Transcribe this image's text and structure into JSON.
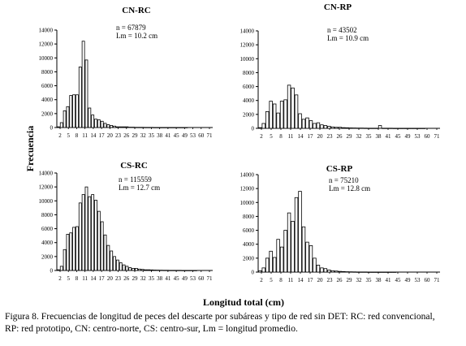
{
  "figure": {
    "ylabel": "Frecuencia",
    "xlabel": "Longitud total (cm)",
    "caption_line1": "Figura 8. Frecuencias de longitud de peces del descarte por subáreas y tipo de red sin DET: RC: red convencional,",
    "caption_line2": "RP: red prototipo, CN: centro-norte, CS: centro-sur, Lm = longitud promedio."
  },
  "chart_data": [
    {
      "type": "bar",
      "title": "CN-RC",
      "n_text": "n = 67879",
      "lm_text": "Lm = 10.2 cm",
      "ylim": [
        0,
        14000
      ],
      "yticks": [
        "0",
        "2000",
        "4000",
        "6000",
        "8000",
        "10000",
        "12000",
        "14000"
      ],
      "xticks": [
        "2",
        "5",
        "8",
        "11",
        "14",
        "17",
        "20",
        "23",
        "26",
        "29",
        "32",
        "35",
        "38",
        "41",
        "45",
        "49",
        "53",
        "60",
        "71"
      ],
      "categories": [
        "2",
        "3",
        "4",
        "5",
        "6",
        "7",
        "8",
        "9",
        "10",
        "11",
        "12",
        "13",
        "14",
        "15",
        "16",
        "17",
        "18",
        "19",
        "20",
        "21",
        "22",
        "23",
        "24",
        "25",
        "26",
        "27",
        "28",
        "29",
        "30",
        "31",
        "32",
        "33",
        "34",
        "35",
        "36",
        "37",
        "38",
        "39",
        "40",
        "41",
        "43",
        "45",
        "47",
        "49",
        "51",
        "53",
        "57",
        "60",
        "65",
        "71"
      ],
      "values": [
        100,
        700,
        2400,
        3000,
        4600,
        4700,
        4700,
        8700,
        12400,
        9700,
        2800,
        1800,
        1200,
        1100,
        900,
        600,
        400,
        300,
        200,
        100,
        100,
        100,
        100,
        50,
        50,
        30,
        30,
        30,
        20,
        20,
        20,
        10,
        10,
        10,
        10,
        10,
        10,
        10,
        10,
        10,
        10,
        10,
        0,
        0,
        0,
        0,
        0,
        0,
        0,
        0
      ]
    },
    {
      "type": "bar",
      "title": "CN-RP",
      "n_text": "n = 43502",
      "lm_text": "Lm = 10.9 cm",
      "ylim": [
        0,
        14000
      ],
      "yticks": [
        "0",
        "2000",
        "4000",
        "6000",
        "8000",
        "10000",
        "12000",
        "14000"
      ],
      "xticks": [
        "2",
        "5",
        "8",
        "11",
        "14",
        "17",
        "20",
        "23",
        "26",
        "29",
        "32",
        "35",
        "38",
        "41",
        "45",
        "49",
        "53",
        "60",
        "71"
      ],
      "categories": [
        "2",
        "3",
        "4",
        "5",
        "6",
        "7",
        "8",
        "9",
        "10",
        "11",
        "12",
        "13",
        "14",
        "15",
        "16",
        "17",
        "18",
        "19",
        "20",
        "21",
        "22",
        "23",
        "24",
        "25",
        "26",
        "27",
        "28",
        "29",
        "30",
        "31",
        "32",
        "33",
        "34",
        "35",
        "36",
        "37",
        "38",
        "39",
        "40",
        "41",
        "43",
        "45",
        "47",
        "49",
        "51",
        "53",
        "57",
        "60",
        "65",
        "71"
      ],
      "values": [
        100,
        700,
        2400,
        3900,
        3500,
        2200,
        3900,
        4100,
        6200,
        5800,
        4800,
        2100,
        1300,
        1500,
        1100,
        700,
        800,
        500,
        400,
        300,
        200,
        150,
        150,
        100,
        80,
        60,
        50,
        40,
        40,
        30,
        20,
        20,
        20,
        400,
        20,
        20,
        20,
        10,
        10,
        10,
        10,
        10,
        10,
        10,
        10,
        10,
        0,
        0,
        0,
        0
      ]
    },
    {
      "type": "bar",
      "title": "CS-RC",
      "n_text": "n = 115559",
      "lm_text": "Lm = 12.7 cm",
      "ylim": [
        0,
        14000
      ],
      "yticks": [
        "0",
        "2000",
        "4000",
        "6000",
        "8000",
        "10000",
        "12000",
        "14000"
      ],
      "xticks": [
        "2",
        "5",
        "8",
        "11",
        "14",
        "17",
        "20",
        "23",
        "26",
        "29",
        "32",
        "35",
        "38",
        "41",
        "45",
        "49",
        "53",
        "60",
        "71"
      ],
      "categories": [
        "2",
        "3",
        "4",
        "5",
        "6",
        "7",
        "8",
        "9",
        "10",
        "11",
        "12",
        "13",
        "14",
        "15",
        "16",
        "17",
        "18",
        "19",
        "20",
        "21",
        "22",
        "23",
        "24",
        "25",
        "26",
        "27",
        "28",
        "29",
        "30",
        "31",
        "32",
        "33",
        "34",
        "35",
        "36",
        "37",
        "38",
        "39",
        "40",
        "41",
        "43",
        "45",
        "47",
        "49",
        "51",
        "53",
        "57",
        "60",
        "65",
        "71"
      ],
      "values": [
        100,
        600,
        3000,
        5200,
        5400,
        6200,
        6300,
        9700,
        10900,
        12000,
        10600,
        10900,
        10100,
        8500,
        7000,
        5100,
        3600,
        2800,
        2000,
        1500,
        1100,
        800,
        600,
        400,
        300,
        300,
        200,
        150,
        100,
        100,
        80,
        60,
        50,
        40,
        30,
        30,
        20,
        20,
        20,
        20,
        10,
        10,
        10,
        10,
        10,
        0,
        0,
        0,
        0,
        0
      ]
    },
    {
      "type": "bar",
      "title": "CS-RP",
      "n_text": "n = 75210",
      "lm_text": "Lm = 12.8 cm",
      "ylim": [
        0,
        14000
      ],
      "yticks": [
        "0",
        "2000",
        "4000",
        "6000",
        "8000",
        "10000",
        "12000",
        "14000"
      ],
      "xticks": [
        "2",
        "5",
        "8",
        "11",
        "14",
        "17",
        "20",
        "23",
        "26",
        "29",
        "32",
        "35",
        "38",
        "41",
        "45",
        "49",
        "53",
        "60",
        "71"
      ],
      "categories": [
        "2",
        "3",
        "4",
        "5",
        "6",
        "7",
        "8",
        "9",
        "10",
        "11",
        "12",
        "13",
        "14",
        "15",
        "16",
        "17",
        "18",
        "19",
        "20",
        "21",
        "22",
        "23",
        "24",
        "25",
        "26",
        "27",
        "28",
        "29",
        "30",
        "31",
        "32",
        "33",
        "34",
        "35",
        "36",
        "37",
        "38",
        "39",
        "40",
        "41",
        "43",
        "45",
        "47",
        "49",
        "51",
        "53",
        "57",
        "60",
        "65",
        "71"
      ],
      "values": [
        200,
        600,
        2000,
        3000,
        2100,
        4700,
        3600,
        6000,
        8500,
        7300,
        10700,
        11600,
        6500,
        4300,
        3800,
        2000,
        1000,
        600,
        500,
        300,
        200,
        150,
        100,
        80,
        50,
        40,
        30,
        20,
        20,
        20,
        10,
        10,
        10,
        10,
        10,
        10,
        10,
        10,
        0,
        0,
        0,
        0,
        0,
        0,
        0,
        0,
        0,
        0,
        0,
        0
      ]
    }
  ]
}
